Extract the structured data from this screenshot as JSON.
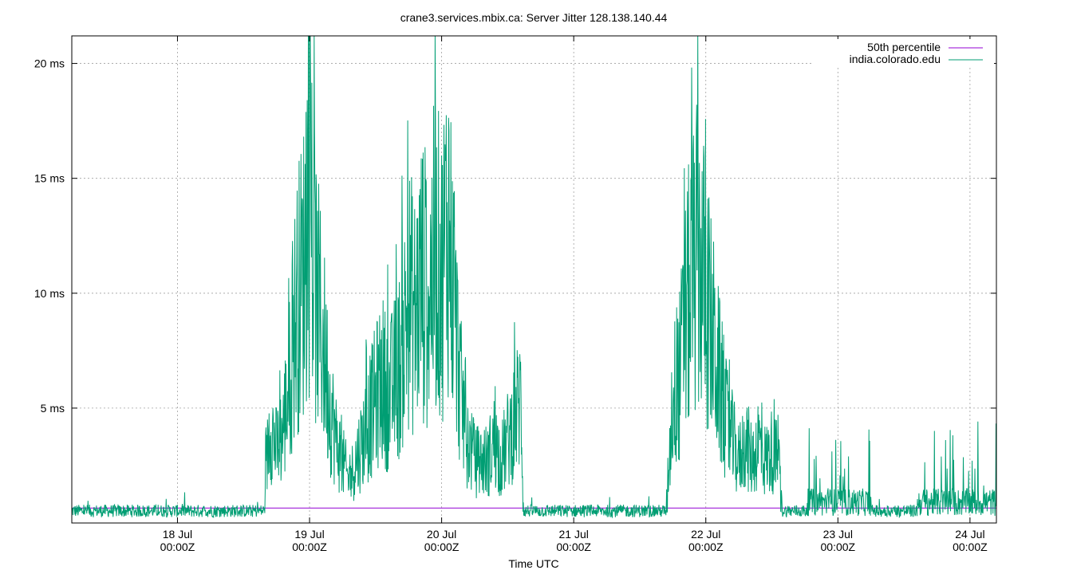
{
  "chart_data": {
    "type": "line",
    "title": "crane3.services.mbix.ca: Server Jitter 128.138.140.44",
    "xlabel": "Time UTC",
    "ylabel": "",
    "xlim_days": [
      17.2,
      24.2
    ],
    "ylim_ms": [
      0,
      21.2
    ],
    "y_ticks": [
      {
        "value": 5,
        "label": "5 ms"
      },
      {
        "value": 10,
        "label": "10 ms"
      },
      {
        "value": 15,
        "label": "15 ms"
      },
      {
        "value": 20,
        "label": "20 ms"
      }
    ],
    "x_ticks": [
      {
        "day": 18,
        "date": "18 Jul",
        "time": "00:00Z"
      },
      {
        "day": 19,
        "date": "19 Jul",
        "time": "00:00Z"
      },
      {
        "day": 20,
        "date": "20 Jul",
        "time": "00:00Z"
      },
      {
        "day": 21,
        "date": "21 Jul",
        "time": "00:00Z"
      },
      {
        "day": 22,
        "date": "22 Jul",
        "time": "00:00Z"
      },
      {
        "day": 23,
        "date": "23 Jul",
        "time": "00:00Z"
      },
      {
        "day": 24,
        "date": "24 Jul",
        "time": "00:00Z"
      }
    ],
    "grid": true,
    "legend_position": "top-right",
    "series": [
      {
        "name": "50th percentile",
        "color": "#9400d3",
        "values": [
          [
            17.2,
            0.65
          ],
          [
            24.2,
            0.65
          ]
        ]
      },
      {
        "name": "india.colorado.edu",
        "color": "#009e73",
        "values": [
          [
            17.2,
            0.4
          ],
          [
            17.5,
            0.5
          ],
          [
            17.8,
            0.5
          ],
          [
            18.1,
            0.45
          ],
          [
            18.4,
            0.5
          ],
          [
            18.65,
            0.5
          ],
          [
            18.7,
            5.0
          ],
          [
            18.75,
            3.5
          ],
          [
            18.8,
            4.5
          ],
          [
            18.85,
            7.0
          ],
          [
            18.9,
            10.5
          ],
          [
            18.95,
            12.0
          ],
          [
            19.0,
            15.0
          ],
          [
            19.05,
            11.0
          ],
          [
            19.1,
            9.0
          ],
          [
            19.15,
            6.0
          ],
          [
            19.2,
            4.0
          ],
          [
            19.25,
            3.0
          ],
          [
            19.3,
            2.0
          ],
          [
            19.35,
            3.0
          ],
          [
            19.4,
            4.0
          ],
          [
            19.45,
            5.0
          ],
          [
            19.5,
            6.0
          ],
          [
            19.55,
            7.0
          ],
          [
            19.6,
            6.0
          ],
          [
            19.65,
            7.0
          ],
          [
            19.7,
            8.0
          ],
          [
            19.75,
            11.0
          ],
          [
            19.8,
            10.0
          ],
          [
            19.85,
            12.0
          ],
          [
            19.9,
            11.0
          ],
          [
            19.95,
            13.0
          ],
          [
            20.0,
            12.0
          ],
          [
            20.05,
            15.0
          ],
          [
            20.1,
            10.0
          ],
          [
            20.15,
            6.0
          ],
          [
            20.2,
            4.0
          ],
          [
            20.25,
            3.0
          ],
          [
            20.3,
            3.0
          ],
          [
            20.35,
            3.0
          ],
          [
            20.4,
            4.0
          ],
          [
            20.45,
            3.0
          ],
          [
            20.5,
            4.0
          ],
          [
            20.55,
            5.0
          ],
          [
            20.6,
            6.0
          ],
          [
            20.62,
            0.8
          ],
          [
            20.9,
            0.5
          ],
          [
            21.2,
            0.5
          ],
          [
            21.5,
            0.55
          ],
          [
            21.7,
            0.9
          ],
          [
            21.75,
            6.0
          ],
          [
            21.8,
            7.0
          ],
          [
            21.85,
            10.0
          ],
          [
            21.9,
            12.0
          ],
          [
            21.95,
            13.0
          ],
          [
            22.0,
            11.0
          ],
          [
            22.05,
            9.0
          ],
          [
            22.1,
            7.0
          ],
          [
            22.15,
            5.0
          ],
          [
            22.2,
            4.0
          ],
          [
            22.25,
            3.0
          ],
          [
            22.3,
            4.0
          ],
          [
            22.35,
            3.0
          ],
          [
            22.4,
            4.0
          ],
          [
            22.45,
            3.0
          ],
          [
            22.5,
            3.5
          ],
          [
            22.55,
            3.0
          ],
          [
            22.58,
            1.0
          ],
          [
            22.7,
            0.9
          ],
          [
            22.9,
            1.2
          ],
          [
            23.1,
            1.3
          ],
          [
            23.3,
            0.9
          ],
          [
            23.5,
            0.9
          ],
          [
            23.7,
            1.1
          ],
          [
            23.9,
            1.2
          ],
          [
            24.2,
            1.3
          ]
        ]
      }
    ]
  }
}
